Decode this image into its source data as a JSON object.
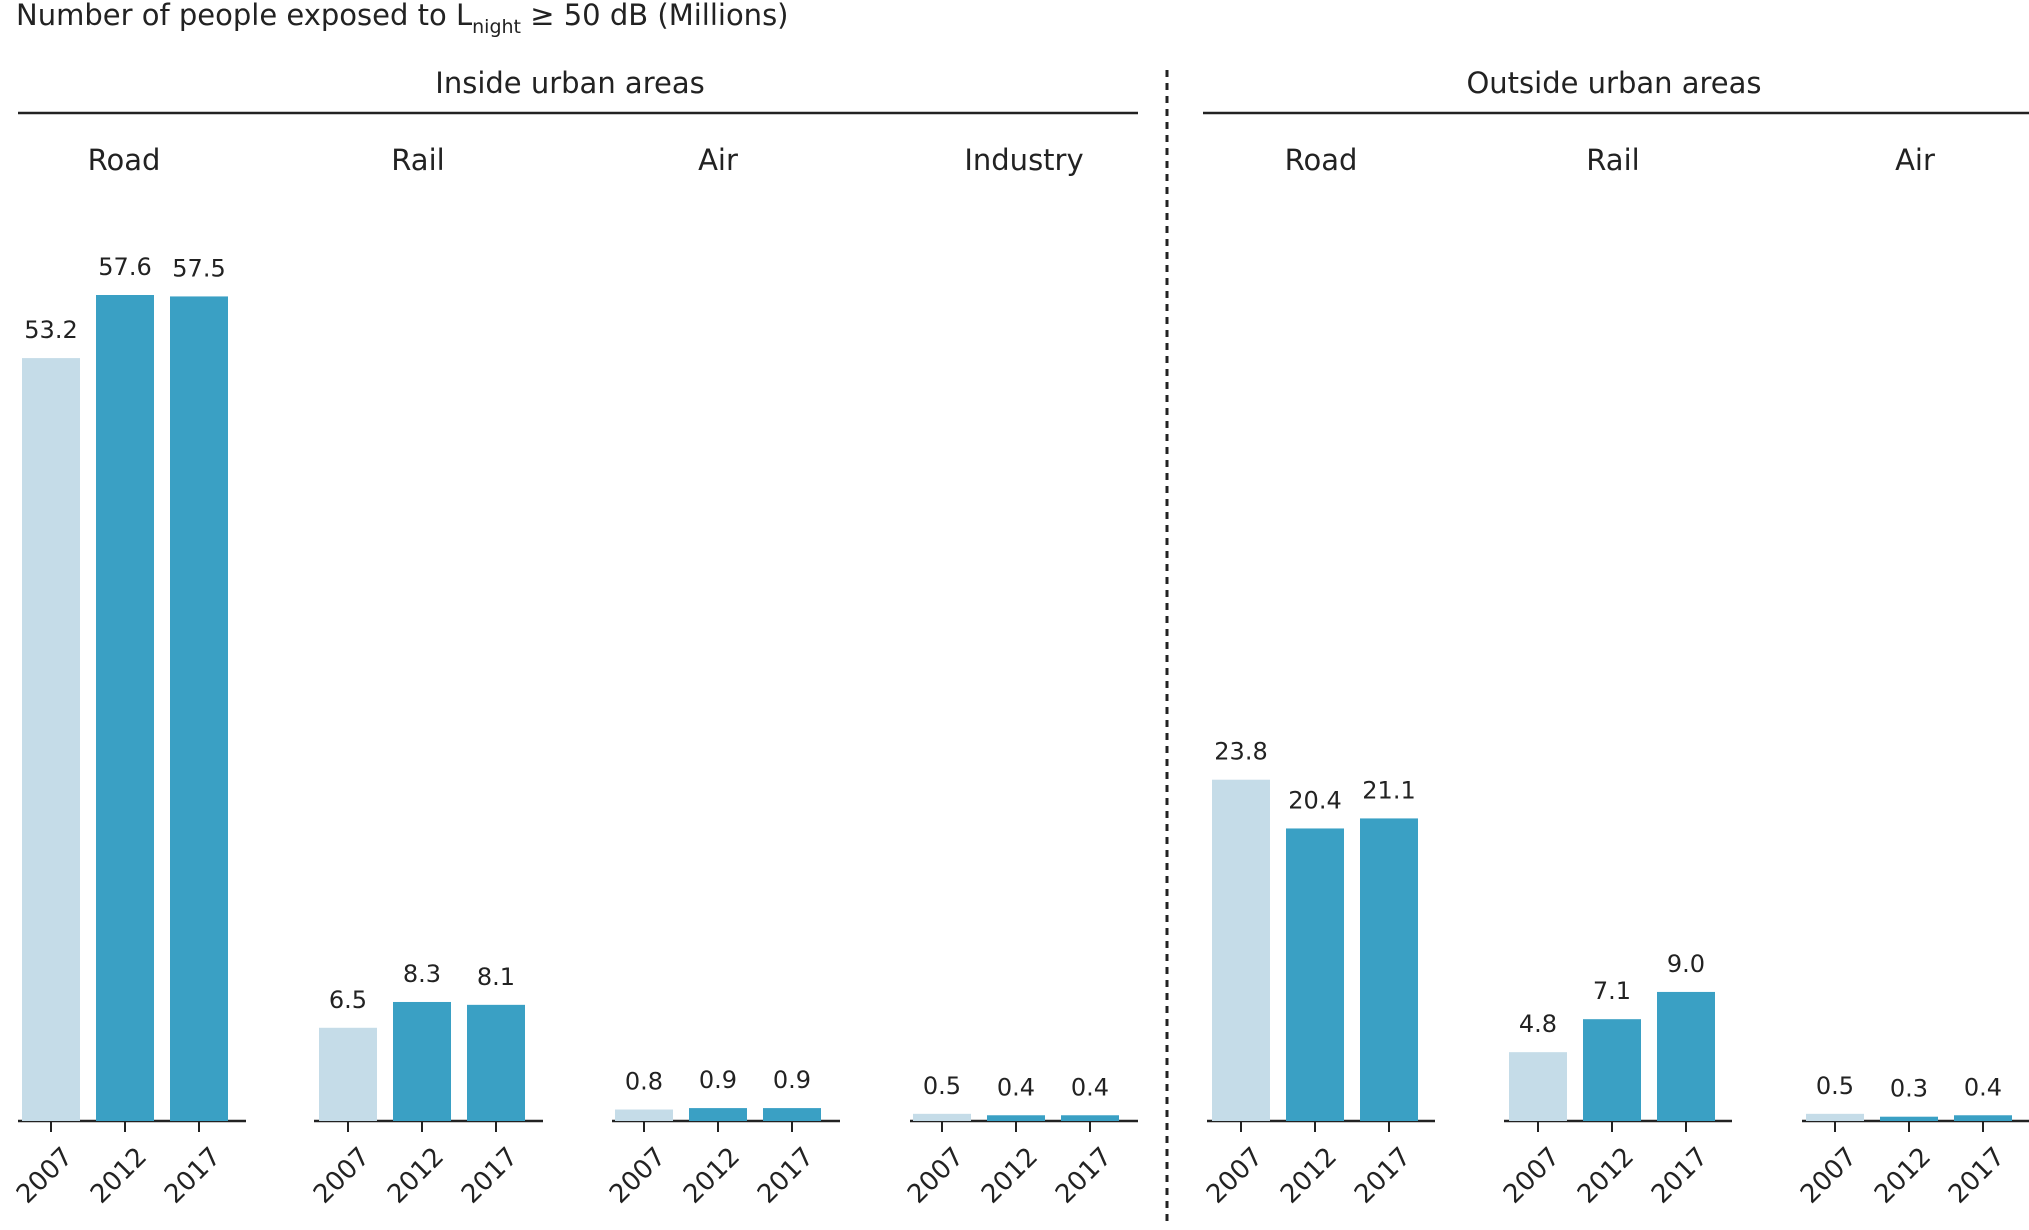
{
  "chart_data": {
    "type": "bar",
    "title": {
      "before": "Number of people exposed to L",
      "sub": "night",
      "after": " ≥ 50 dB (Millions)"
    },
    "years": [
      "2007",
      "2012",
      "2017"
    ],
    "ylim": [
      0,
      60
    ],
    "grid": false,
    "colors": {
      "2007": "#c5dce8",
      "2012": "#3aa0c4",
      "2017": "#3aa0c4"
    },
    "value_format_decimals": 1,
    "regions": [
      {
        "name": "Inside urban areas",
        "categories": [
          {
            "name": "Road",
            "values": [
              53.2,
              57.6,
              57.5
            ]
          },
          {
            "name": "Rail",
            "values": [
              6.5,
              8.3,
              8.1
            ]
          },
          {
            "name": "Air",
            "values": [
              0.8,
              0.9,
              0.9
            ]
          },
          {
            "name": "Industry",
            "values": [
              0.5,
              0.4,
              0.4
            ]
          }
        ]
      },
      {
        "name": "Outside urban areas",
        "categories": [
          {
            "name": "Road",
            "values": [
              23.8,
              20.4,
              21.1
            ]
          },
          {
            "name": "Rail",
            "values": [
              4.8,
              7.1,
              9.0
            ]
          },
          {
            "name": "Air",
            "values": [
              0.5,
              0.3,
              0.4
            ]
          }
        ]
      }
    ]
  }
}
